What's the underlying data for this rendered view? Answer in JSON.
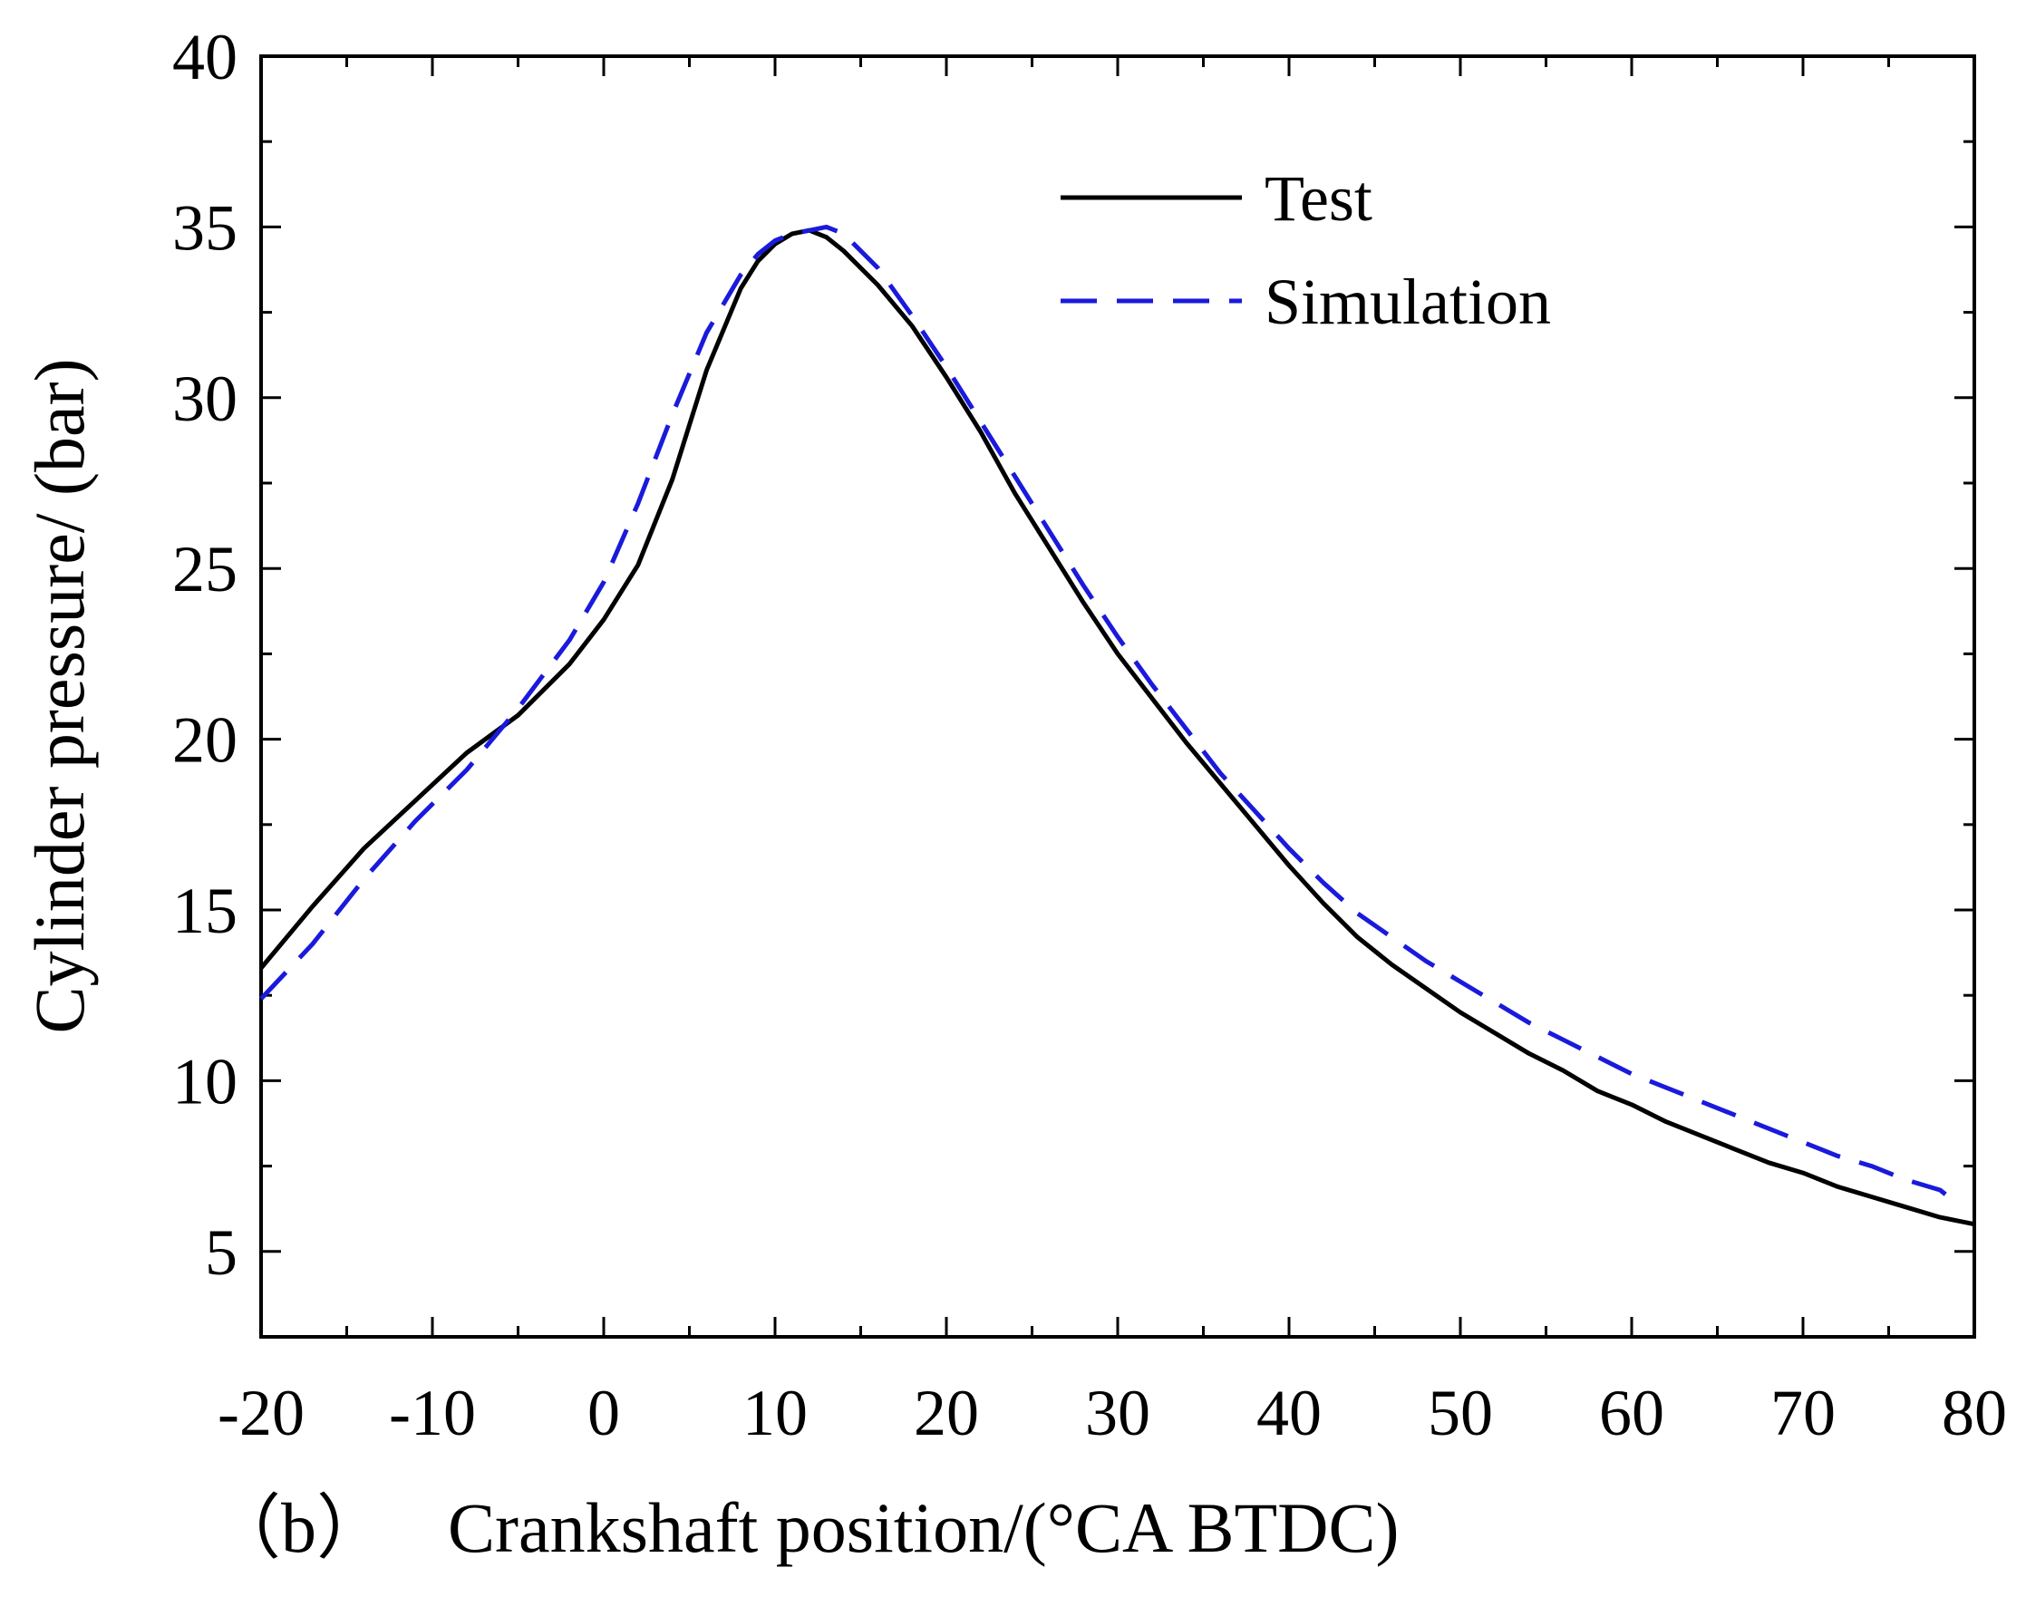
{
  "chart_data": {
    "type": "line",
    "title": "",
    "panel_label": "（b）",
    "xlabel": "Crankshaft position/(°CA BTDC)",
    "ylabel": "Cylinder pressure/ (bar)",
    "xlim": [
      -20,
      80
    ],
    "ylim": [
      2.5,
      40
    ],
    "xticks": [
      -20,
      -10,
      0,
      10,
      20,
      30,
      40,
      50,
      60,
      70,
      80
    ],
    "yticks": [
      5,
      10,
      15,
      20,
      25,
      30,
      35,
      40
    ],
    "grid": false,
    "legend_position": "top-right",
    "series": [
      {
        "name": "Test",
        "color": "#000000",
        "style": "solid",
        "x": [
          -20,
          -17,
          -14,
          -11,
          -8,
          -5,
          -2,
          0,
          2,
          4,
          6,
          8,
          9,
          10,
          11,
          12,
          13,
          14,
          16,
          18,
          20,
          22,
          24,
          26,
          28,
          30,
          32,
          34,
          36,
          38,
          40,
          42,
          44,
          46,
          48,
          50,
          52,
          54,
          56,
          58,
          60,
          62,
          64,
          66,
          68,
          70,
          72,
          74,
          76,
          78,
          80
        ],
        "values": [
          13.3,
          15.1,
          16.8,
          18.2,
          19.6,
          20.7,
          22.2,
          23.5,
          25.1,
          27.6,
          30.8,
          33.2,
          34.0,
          34.5,
          34.8,
          34.9,
          34.7,
          34.3,
          33.3,
          32.1,
          30.6,
          29.0,
          27.2,
          25.6,
          24.0,
          22.5,
          21.2,
          19.9,
          18.7,
          17.5,
          16.3,
          15.2,
          14.2,
          13.4,
          12.7,
          12.0,
          11.4,
          10.8,
          10.3,
          9.7,
          9.3,
          8.8,
          8.4,
          8.0,
          7.6,
          7.3,
          6.9,
          6.6,
          6.3,
          6.0,
          5.8
        ]
      },
      {
        "name": "Simulation",
        "color": "#1a1adc",
        "style": "dashed",
        "x": [
          -20,
          -17,
          -14,
          -11,
          -8,
          -5,
          -2,
          0,
          2,
          4,
          6,
          8,
          9,
          10,
          11,
          12,
          13,
          14,
          16,
          18,
          20,
          22,
          24,
          26,
          28,
          30,
          32,
          34,
          36,
          38,
          40,
          42,
          44,
          46,
          48,
          50,
          52,
          54,
          56,
          58,
          60,
          62,
          64,
          66,
          68,
          70,
          72,
          74,
          76,
          78,
          79
        ],
        "values": [
          12.4,
          14.0,
          15.9,
          17.6,
          19.1,
          20.9,
          22.9,
          24.6,
          26.9,
          29.5,
          31.9,
          33.6,
          34.2,
          34.6,
          34.8,
          34.9,
          35.0,
          34.8,
          33.8,
          32.4,
          30.9,
          29.3,
          27.7,
          26.1,
          24.5,
          23.0,
          21.6,
          20.3,
          19.0,
          17.9,
          16.8,
          15.8,
          14.9,
          14.2,
          13.5,
          12.9,
          12.3,
          11.7,
          11.2,
          10.7,
          10.2,
          9.8,
          9.4,
          9.0,
          8.6,
          8.2,
          7.8,
          7.5,
          7.1,
          6.8,
          6.4
        ]
      }
    ]
  }
}
